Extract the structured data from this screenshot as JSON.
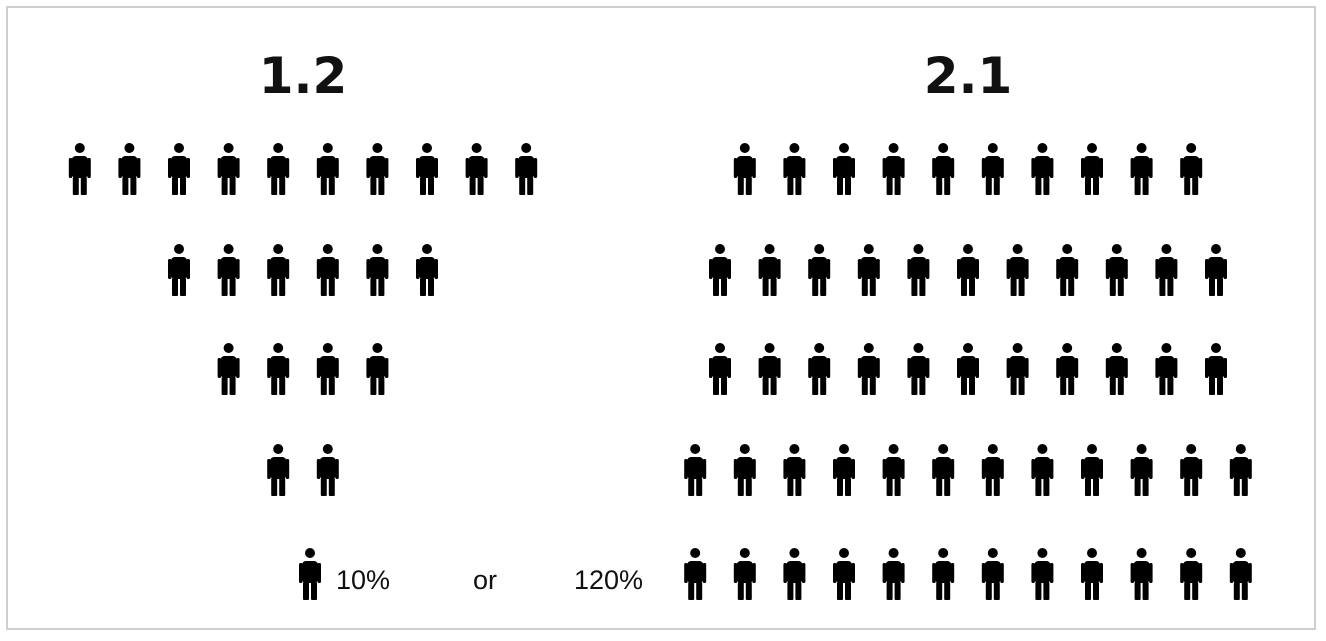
{
  "groups": [
    {
      "title": "1.2",
      "rows": [
        10,
        6,
        4,
        2
      ]
    },
    {
      "title": "2.1",
      "rows": [
        10,
        11,
        11,
        12,
        12
      ]
    }
  ],
  "legend": {
    "unit_value": "10%",
    "separator": "or",
    "total_value": "120%"
  },
  "colors": {
    "figure": "#000000",
    "text": "#111111",
    "frame": "#cfcfcf"
  },
  "icon": "person-icon"
}
